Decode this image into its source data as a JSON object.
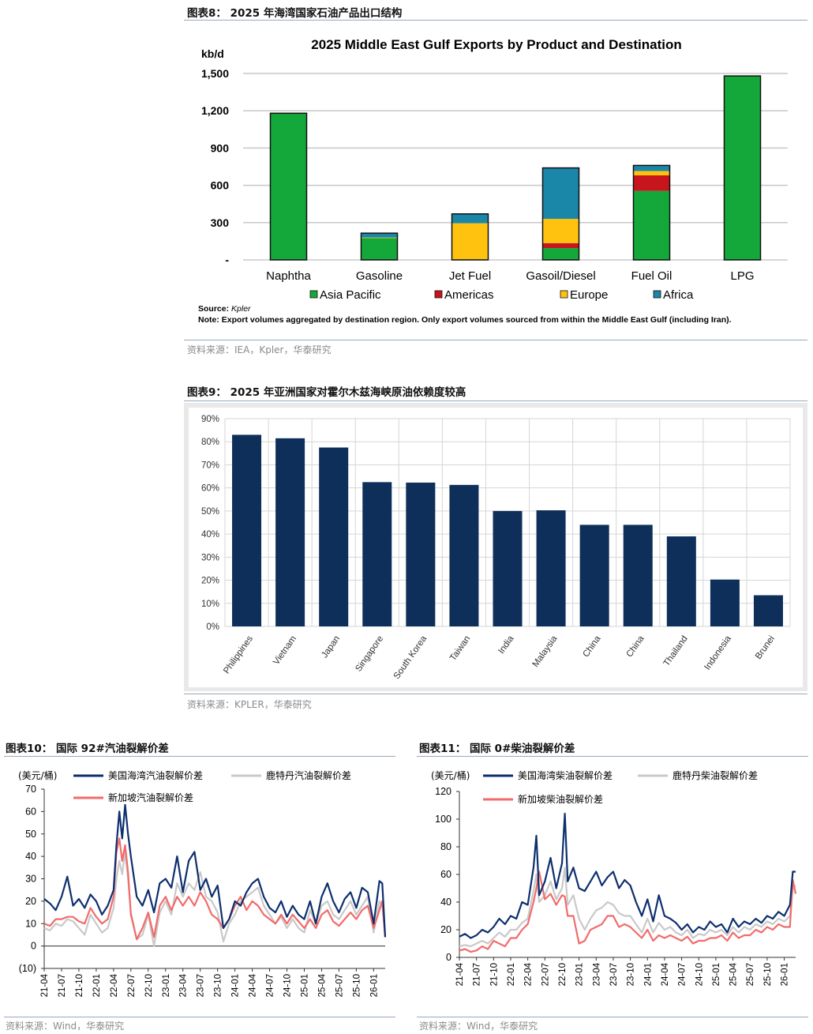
{
  "figures": {
    "fig8": {
      "title": "图表8：  2025 年海湾国家石油产品出口结构",
      "source": "资料来源：IEA，Kpler，华泰研究"
    },
    "fig9": {
      "title": "图表9：  2025 年亚洲国家对霍尔木兹海峡原油依赖度较高",
      "source": "资料来源：KPLER，华泰研究"
    },
    "fig10": {
      "title": "图表10：  国际 92#汽油裂解价差",
      "source": "资料来源：Wind，华泰研究"
    },
    "fig11": {
      "title": "图表11：  国际 0#柴油裂解价差",
      "source": "资料来源：Wind，华泰研究"
    }
  },
  "chart_data": [
    {
      "type": "bar",
      "stacked": true,
      "title": "2025 Middle East Gulf Exports by Product and Destination",
      "ylabel": "kb/d",
      "ylim": [
        0,
        1500
      ],
      "yticks": [
        0,
        300,
        600,
        900,
        1200,
        1500
      ],
      "ytick_labels": [
        "-",
        "300",
        "600",
        "900",
        "1,200",
        "1,500"
      ],
      "categories": [
        "Naphtha",
        "Gasoline",
        "Jet Fuel",
        "Gasoil/Diesel",
        "Fuel Oil",
        "LPG"
      ],
      "series": [
        {
          "name": "Asia Pacific",
          "color": "#14a83b",
          "values": [
            1180,
            175,
            5,
            95,
            555,
            1480
          ]
        },
        {
          "name": "Americas",
          "color": "#c8141c",
          "values": [
            0,
            0,
            0,
            40,
            125,
            0
          ]
        },
        {
          "name": "Europe",
          "color": "#ffc20e",
          "values": [
            0,
            5,
            290,
            195,
            35,
            0
          ]
        },
        {
          "name": "Africa",
          "color": "#1a86a8",
          "values": [
            0,
            35,
            75,
            410,
            45,
            0
          ]
        }
      ],
      "source_line": "Source: ",
      "source_name": "Kpler",
      "note": "Note: Export volumes aggregated by destination region. Only export volumes sourced from within the Middle East Gulf (including Iran).",
      "legend_position": "bottom"
    },
    {
      "type": "bar",
      "title": "",
      "ylim": [
        0,
        90
      ],
      "yticks": [
        0,
        10,
        20,
        30,
        40,
        50,
        60,
        70,
        80,
        90
      ],
      "ytick_labels": [
        "0%",
        "10%",
        "20%",
        "30%",
        "40%",
        "50%",
        "60%",
        "70%",
        "80%",
        "90%"
      ],
      "categories": [
        "Philippines",
        "Vietnam",
        "Japan",
        "Singapore",
        "South Korea",
        "Taiwan",
        "India",
        "Malaysia",
        "China",
        "China",
        "Thailand",
        "Indonesia",
        "Brunei"
      ],
      "values": [
        83,
        81.5,
        77.5,
        62.5,
        62.3,
        61.3,
        50,
        50.3,
        44,
        44,
        39,
        20.3,
        13.5
      ],
      "color": "#0d2f5a",
      "grid": true
    },
    {
      "type": "line",
      "title": "",
      "ylabel": "(美元/桶)",
      "ylim": [
        -10,
        70
      ],
      "yticks": [
        -10,
        0,
        10,
        20,
        30,
        40,
        50,
        60,
        70
      ],
      "ytick_labels": [
        "(10)",
        "0",
        "10",
        "20",
        "30",
        "40",
        "50",
        "60",
        "70"
      ],
      "xtick_labels": [
        "21-04",
        "21-07",
        "21-10",
        "22-01",
        "22-04",
        "22-07",
        "22-10",
        "23-01",
        "23-04",
        "23-07",
        "23-10",
        "24-01",
        "24-04",
        "24-07",
        "24-10",
        "25-01",
        "25-04",
        "25-07",
        "25-10",
        "26-01"
      ],
      "x_months": [
        0,
        3,
        6,
        9,
        12,
        15,
        18,
        21,
        24,
        27,
        30,
        33,
        36,
        39,
        42,
        45,
        48,
        51,
        54,
        57
      ],
      "series": [
        {
          "name": "美国海湾汽油裂解价差",
          "color": "#0d2f6e",
          "x": [
            0,
            1,
            2,
            3,
            4,
            5,
            6,
            7,
            8,
            9,
            10,
            11,
            12,
            12.5,
            13,
            13.5,
            14,
            14.5,
            15,
            16,
            17,
            18,
            19,
            20,
            21,
            22,
            23,
            24,
            25,
            26,
            27,
            28,
            29,
            30,
            31,
            32,
            33,
            34,
            35,
            36,
            37,
            38,
            39,
            40,
            41,
            42,
            43,
            44,
            45,
            46,
            47,
            48,
            49,
            50,
            51,
            52,
            53,
            54,
            55,
            56,
            57,
            58,
            58.5,
            59
          ],
          "values": [
            21,
            19,
            16,
            22,
            31,
            18,
            21,
            17,
            23,
            20,
            14,
            18,
            25,
            45,
            60,
            48,
            63,
            50,
            40,
            22,
            18,
            25,
            15,
            28,
            30,
            26,
            40,
            24,
            38,
            42,
            25,
            30,
            22,
            27,
            8,
            12,
            20,
            18,
            24,
            28,
            30,
            22,
            17,
            15,
            20,
            13,
            18,
            14,
            12,
            20,
            10,
            22,
            28,
            20,
            15,
            21,
            24,
            17,
            26,
            24,
            10,
            29,
            28,
            4
          ]
        },
        {
          "name": "鹿特丹汽油裂解价差",
          "color": "#c9c9c9",
          "x": [
            0,
            1,
            2,
            3,
            4,
            5,
            6,
            7,
            8,
            9,
            10,
            11,
            12,
            12.5,
            13,
            13.5,
            14,
            14.5,
            15,
            16,
            17,
            18,
            19,
            20,
            21,
            22,
            23,
            24,
            25,
            26,
            27,
            28,
            29,
            30,
            31,
            32,
            33,
            34,
            35,
            36,
            37,
            38,
            39,
            40,
            41,
            42,
            43,
            44,
            45,
            46,
            47,
            48,
            49,
            50,
            51,
            52,
            53,
            54,
            55,
            56,
            57,
            58,
            58.5,
            59
          ],
          "values": [
            8,
            7,
            10,
            9,
            12,
            11,
            8,
            5,
            14,
            10,
            6,
            8,
            17,
            30,
            38,
            32,
            42,
            30,
            15,
            3,
            5,
            14,
            0,
            15,
            20,
            14,
            28,
            22,
            28,
            25,
            33,
            22,
            20,
            15,
            2,
            10,
            14,
            20,
            22,
            24,
            26,
            18,
            14,
            10,
            13,
            8,
            12,
            8,
            6,
            16,
            10,
            18,
            20,
            14,
            12,
            16,
            20,
            14,
            18,
            22,
            6,
            20,
            18,
            4
          ]
        },
        {
          "name": "新加坡汽油裂解价差",
          "color": "#f26b6b",
          "x": [
            0,
            1,
            2,
            3,
            4,
            5,
            6,
            7,
            8,
            9,
            10,
            11,
            12,
            12.5,
            13,
            13.5,
            14,
            14.5,
            15,
            16,
            17,
            18,
            19,
            20,
            21,
            22,
            23,
            24,
            25,
            26,
            27,
            28,
            29,
            30,
            31,
            32,
            33,
            34,
            35,
            36,
            37,
            38,
            39,
            40,
            41,
            42,
            43,
            44,
            45,
            46,
            47,
            48,
            49,
            50,
            51,
            52,
            53,
            54,
            55,
            56,
            57,
            58,
            58.5,
            59
          ],
          "values": [
            10,
            9,
            12,
            12,
            13,
            13,
            11,
            10,
            17,
            13,
            10,
            12,
            22,
            42,
            48,
            38,
            45,
            33,
            14,
            3,
            8,
            15,
            4,
            18,
            22,
            16,
            22,
            18,
            22,
            18,
            24,
            20,
            14,
            12,
            8,
            12,
            18,
            22,
            16,
            20,
            18,
            14,
            12,
            10,
            14,
            10,
            14,
            11,
            8,
            12,
            8,
            14,
            16,
            11,
            9,
            12,
            15,
            12,
            16,
            18,
            8,
            16,
            20,
            4
          ]
        }
      ],
      "legend_position": "top-left"
    },
    {
      "type": "line",
      "title": "",
      "ylabel": "(美元/桶)",
      "ylim": [
        0,
        120
      ],
      "yticks": [
        0,
        20,
        40,
        60,
        80,
        100,
        120
      ],
      "ytick_labels": [
        "0",
        "20",
        "40",
        "60",
        "80",
        "100",
        "120"
      ],
      "xtick_labels": [
        "21-04",
        "21-07",
        "21-10",
        "22-01",
        "22-04",
        "22-07",
        "22-10",
        "23-01",
        "23-04",
        "23-07",
        "23-10",
        "24-01",
        "24-04",
        "24-07",
        "24-10",
        "25-01",
        "25-04",
        "25-07",
        "25-10",
        "26-01"
      ],
      "x_months": [
        0,
        3,
        6,
        9,
        12,
        15,
        18,
        21,
        24,
        27,
        30,
        33,
        36,
        39,
        42,
        45,
        48,
        51,
        54,
        57
      ],
      "series": [
        {
          "name": "美国海湾柴油裂解价差",
          "color": "#0d2f6e",
          "x": [
            0,
            1,
            2,
            3,
            4,
            5,
            6,
            7,
            8,
            9,
            10,
            11,
            12,
            13,
            13.5,
            14,
            15,
            16,
            17,
            18,
            18.5,
            19,
            20,
            21,
            22,
            23,
            24,
            25,
            26,
            27,
            28,
            29,
            30,
            31,
            32,
            33,
            34,
            35,
            36,
            37,
            38,
            39,
            40,
            41,
            42,
            43,
            44,
            45,
            46,
            47,
            48,
            49,
            50,
            51,
            52,
            53,
            54,
            55,
            56,
            57,
            58,
            58.5,
            59
          ],
          "values": [
            15,
            17,
            14,
            16,
            20,
            18,
            22,
            28,
            24,
            30,
            28,
            40,
            38,
            65,
            88,
            45,
            55,
            72,
            50,
            68,
            104,
            55,
            65,
            50,
            48,
            55,
            62,
            52,
            58,
            62,
            50,
            56,
            52,
            40,
            30,
            42,
            26,
            45,
            30,
            28,
            25,
            20,
            24,
            18,
            22,
            20,
            26,
            22,
            24,
            18,
            28,
            22,
            26,
            24,
            28,
            25,
            30,
            28,
            33,
            30,
            38,
            62,
            62
          ]
        },
        {
          "name": "鹿特丹柴油裂解价差",
          "color": "#c9c9c9",
          "x": [
            0,
            1,
            2,
            3,
            4,
            5,
            6,
            7,
            8,
            9,
            10,
            11,
            12,
            13,
            13.5,
            14,
            15,
            16,
            17,
            18,
            18.5,
            19,
            20,
            21,
            22,
            23,
            24,
            25,
            26,
            27,
            28,
            29,
            30,
            31,
            32,
            33,
            34,
            35,
            36,
            37,
            38,
            39,
            40,
            41,
            42,
            43,
            44,
            45,
            46,
            47,
            48,
            49,
            50,
            51,
            52,
            53,
            54,
            55,
            56,
            57,
            58,
            58.5,
            59
          ],
          "values": [
            8,
            9,
            8,
            10,
            12,
            10,
            14,
            18,
            15,
            20,
            20,
            25,
            28,
            48,
            60,
            40,
            45,
            55,
            42,
            50,
            65,
            38,
            45,
            28,
            20,
            28,
            34,
            36,
            40,
            38,
            32,
            30,
            30,
            24,
            18,
            28,
            18,
            25,
            20,
            22,
            18,
            16,
            20,
            14,
            17,
            16,
            20,
            18,
            20,
            16,
            22,
            18,
            22,
            20,
            24,
            22,
            26,
            24,
            28,
            26,
            30,
            50,
            52
          ]
        },
        {
          "name": "新加坡柴油裂解价差",
          "color": "#f26b6b",
          "x": [
            0,
            1,
            2,
            3,
            4,
            5,
            6,
            7,
            8,
            9,
            10,
            11,
            12,
            13,
            13.5,
            14,
            15,
            16,
            17,
            18,
            18.5,
            19,
            20,
            21,
            22,
            23,
            24,
            25,
            26,
            27,
            28,
            29,
            30,
            31,
            32,
            33,
            34,
            35,
            36,
            37,
            38,
            39,
            40,
            41,
            42,
            43,
            44,
            45,
            46,
            47,
            48,
            49,
            50,
            51,
            52,
            53,
            54,
            55,
            56,
            57,
            58,
            58.5,
            59
          ],
          "values": [
            5,
            6,
            4,
            5,
            8,
            6,
            12,
            10,
            8,
            14,
            14,
            20,
            24,
            40,
            50,
            62,
            42,
            46,
            38,
            45,
            44,
            30,
            30,
            10,
            12,
            20,
            22,
            24,
            30,
            30,
            22,
            24,
            22,
            18,
            14,
            20,
            12,
            16,
            14,
            16,
            14,
            12,
            15,
            10,
            12,
            12,
            14,
            14,
            16,
            12,
            18,
            14,
            16,
            16,
            20,
            18,
            22,
            20,
            24,
            22,
            22,
            56,
            46
          ]
        }
      ],
      "legend_position": "top-left"
    }
  ]
}
